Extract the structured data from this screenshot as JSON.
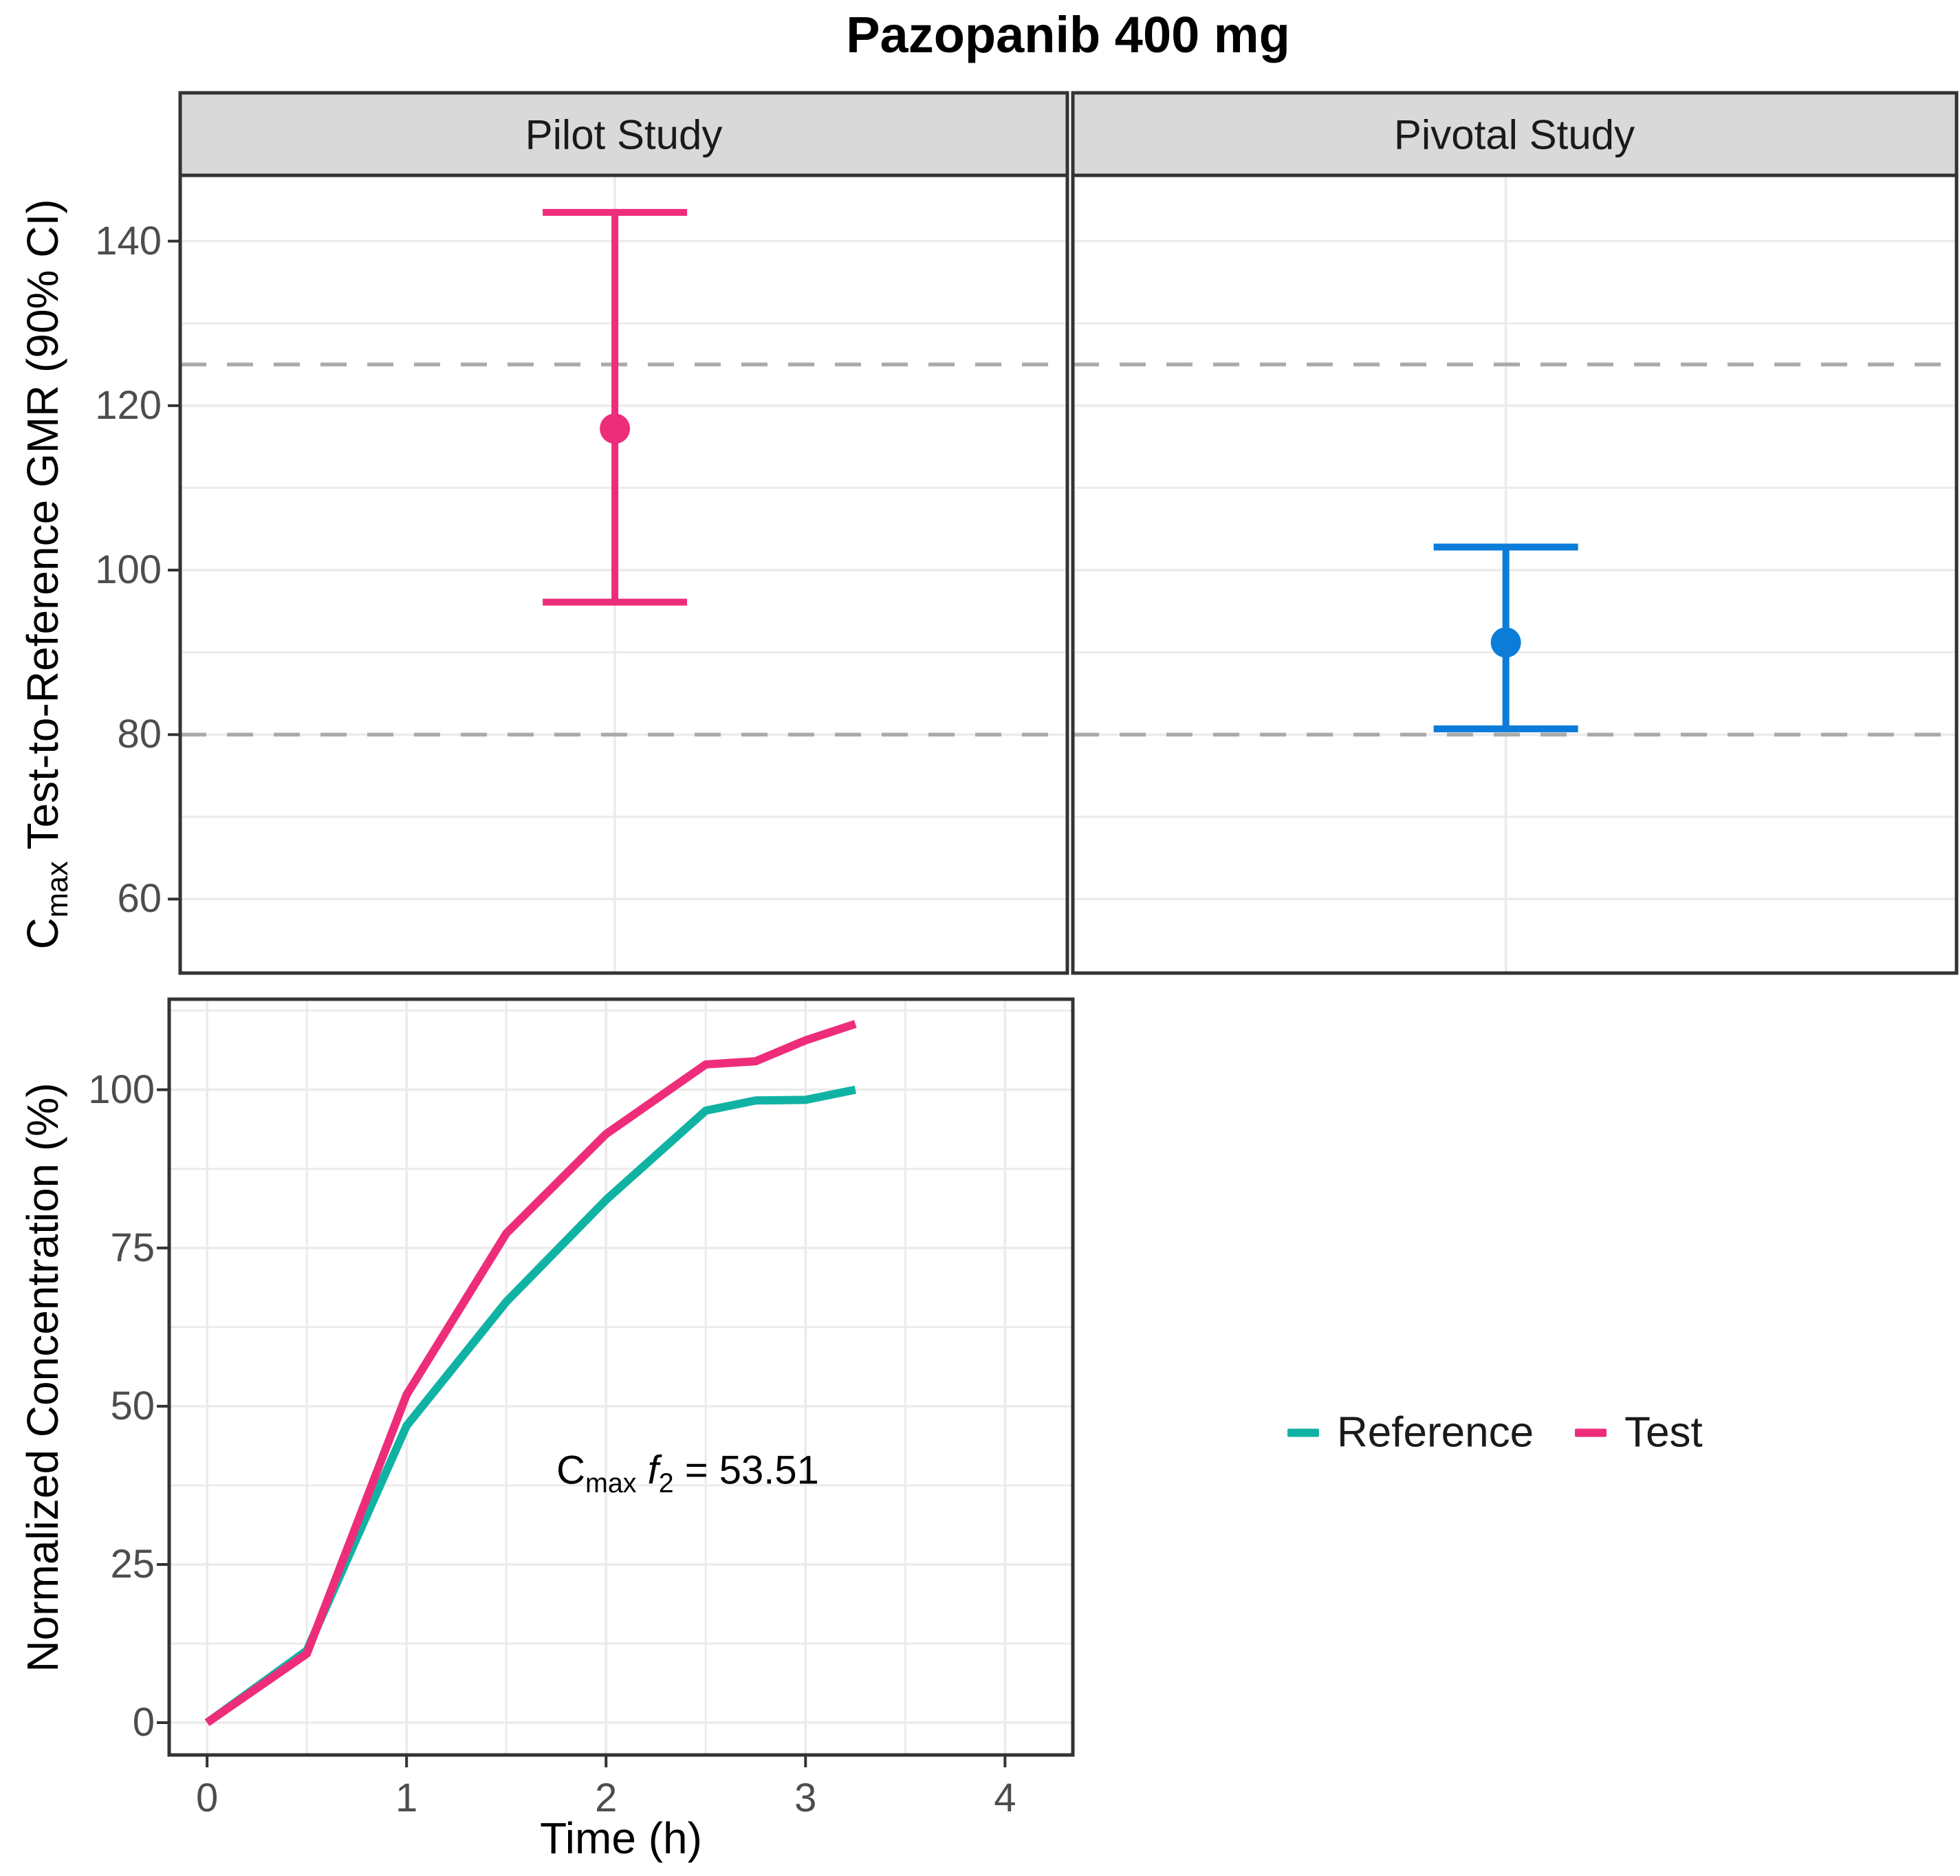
{
  "title": "Pazopanib 400 mg",
  "labels": {
    "forest_y": {
      "pre": "C",
      "sub": "max",
      "post": " Test-to-Reference GMR (90% CI)"
    },
    "profile_y": "Normalized Concentration (%)",
    "profile_x": "Time (h)",
    "annotation": {
      "c": "C",
      "c_sub": "max",
      "f": "f",
      "f_sub": "2",
      "rest": " = 53.51"
    }
  },
  "colors": {
    "test_pink": "#EE2D7A",
    "reference_teal": "#10B3A3",
    "pivotal_blue": "#0B7CD8",
    "limit_dash": "#AAAAAA",
    "grid": "#EBEBEB",
    "panel_border": "#333333",
    "strip_bg": "#D9D9D9",
    "tick_text": "#4D4D4D"
  },
  "legend": [
    {
      "label": "Reference",
      "color_key": "reference_teal"
    },
    {
      "label": "Test",
      "color_key": "test_pink"
    }
  ],
  "chart_data": [
    {
      "type": "pointrange-forest",
      "title": "Pazopanib 400 mg",
      "ylabel": "Cmax Test-to-Reference GMR (90% CI)",
      "facets": [
        "Pilot Study",
        "Pivotal Study"
      ],
      "series": [
        {
          "facet": "Pilot Study",
          "gmr": 117.2,
          "ci90_low": 96.1,
          "ci90_high": 143.5,
          "color_key": "test_pink"
        },
        {
          "facet": "Pivotal Study",
          "gmr": 91.2,
          "ci90_low": 80.7,
          "ci90_high": 102.8,
          "color_key": "pivotal_blue"
        }
      ],
      "be_limit_lines": [
        80,
        125
      ],
      "yticks": [
        60,
        80,
        100,
        120,
        140
      ],
      "ygrid_minor": [
        70,
        90,
        110,
        130
      ],
      "ylim": [
        51,
        148
      ],
      "grid": true,
      "legend_position": "none"
    },
    {
      "type": "line",
      "xlabel": "Time (h)",
      "ylabel": "Normalized Concentration (%)",
      "x": [
        0,
        0.5,
        1,
        1.5,
        2,
        2.5,
        2.75,
        3,
        3.25
      ],
      "series": [
        {
          "name": "Reference",
          "color_key": "reference_teal",
          "values": [
            0,
            11.4,
            46.9,
            66.5,
            82.6,
            96.7,
            98.3,
            98.4,
            100
          ]
        },
        {
          "name": "Test",
          "color_key": "test_pink",
          "values": [
            0,
            10.9,
            51.8,
            77.3,
            93,
            104,
            104.5,
            107.8,
            110.4
          ]
        }
      ],
      "annotation": {
        "text": "Cmax f2 = 53.51",
        "x": 2.41,
        "y": 40
      },
      "xticks": [
        0,
        1,
        2,
        3,
        4
      ],
      "yticks": [
        0,
        25,
        50,
        75,
        100
      ],
      "xgrid_minor": [
        0.5,
        1.5,
        2.5,
        3.5
      ],
      "ygrid_minor": [
        12.5,
        37.5,
        62.5,
        87.5,
        112.5
      ],
      "xlim": [
        -0.19,
        4.34
      ],
      "ylim": [
        -5.1,
        114.3
      ],
      "grid": true,
      "legend_position": "right"
    }
  ]
}
